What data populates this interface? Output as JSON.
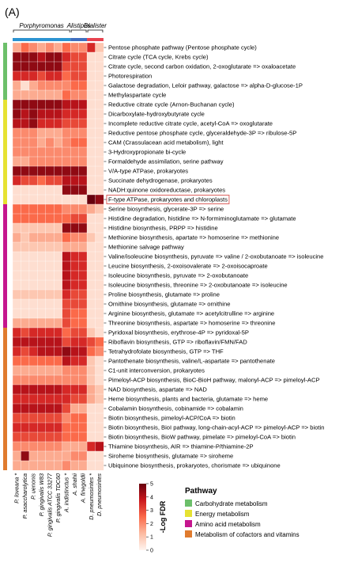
{
  "chart_data": {
    "type": "heatmap",
    "panel_label": "(A)",
    "genus_groups": [
      {
        "name": "Porphyromonas",
        "start": 0,
        "end": 6,
        "color": "#2b93d1"
      },
      {
        "name": "Alistipes",
        "start": 7,
        "end": 8,
        "color": "#3f6fbf"
      },
      {
        "name": "Dialister",
        "start": 9,
        "end": 10,
        "color": "#e8424f"
      }
    ],
    "columns": [
      "P. loveana *",
      "P. asaccharolytica",
      "P. uenonis",
      "P. gingivalis W83",
      "P. gingivalis ATCC 33277",
      "P. gingivalis TDC60",
      "A. indistinctus *",
      "A. shahii",
      "A. finegoldii",
      "D. pneumosintes *",
      "D. pneumosintes"
    ],
    "rows": [
      "Pentose phosphate pathway (Pentose phosphate cycle)",
      "Citrate cycle (TCA cycle, Krebs cycle)",
      "Citrate cycle, second carbon oxidation, 2-oxoglutarate => oxaloacetate",
      "Photorespiration",
      "Galactose degradation, Leloir pathway, galactose => alpha-D-glucose-1P",
      "Methylaspartate cycle",
      "Reductive citrate cycle (Arnon-Buchanan cycle)",
      "Dicarboxylate-hydroxybutyrate cycle",
      "Incomplete reductive citrate cycle, acetyl-CoA => oxoglutarate",
      "Reductive pentose phosphate cycle, glyceraldehyde-3P => ribulose-5P",
      "CAM (Crassulacean acid metabolism), light",
      "3-Hydroxypropionate bi-cycle",
      "Formaldehyde assimilation, serine pathway",
      "V/A-type ATPase, prokaryotes",
      "Succinate dehydrogenase, prokaryotes",
      "NADH:quinone oxidoreductase, prokaryotes",
      "F-type ATPase, prokaryotes and chloroplasts",
      "Serine biosynthesis, glycerate-3P => serine",
      "Histidine degradation, histidine => N-formiminoglutamate => glutamate",
      "Histidine biosynthesis, PRPP => histidine",
      "Methionine biosynthesis, apartate => homoserine => methionine",
      "Methionine salvage pathway",
      "Valine/isoleucine biosynthesis, pyruvate => valine / 2-oxobutanoate => isoleucine",
      "Leucine biosynthesis, 2-oxoisovalerate => 2-oxoisocaproate",
      "Isoleucine biosynthesis, pyruvate => 2-oxobutanoate",
      "Isoleucine biosynthesis, threonine => 2-oxobutanoate => isoleucine",
      "Proline biosynthesis, glutamate => proline",
      "Ornithine biosynthesis, glutamate => ornithine",
      "Arginine biosynthesis, glutamate => acetylcitrulline => arginine",
      "Threonine biosynthesis, aspartate => homoserine => threonine",
      "Pyridoxal biosynthesis, erythrose-4P => pyridoxal-5P",
      "Riboflavin biosynthesis, GTP => riboflavin/FMN/FAD",
      "Tetrahydrofolate biosynthesis, GTP => THF",
      "Pantothenate biosynthesis, valine/L-aspartate => pantothenate",
      "C1-unit interconversion, prokaryotes",
      "Pimeloyl-ACP biosynthesis, BioC-BioH pathway, malonyl-ACP => pimeloyl-ACP",
      "NAD biosynthesis, aspartate => NAD",
      "Heme biosynthesis, plants and bacteria, glutamate => heme",
      "Cobalamin biosynthesis, cobinamide => cobalamin",
      "Biotin biosynthesis, pimeloyl-ACP/CoA => biotin",
      "Biotin biosynthesis, BioI pathway, long-chain-acyl-ACP => pimeloyl-ACP => biotin",
      "Biotin biosynthesis, BioW pathway, pimelate => pimeloyl-CoA => biotin",
      "Thiamine biosynthesis, AIR => thiamine-P/thiamine-2P",
      "Siroheme biosynthesis, glutamate => siroheme",
      "Ubiquinone biosynthesis, prokaryotes, chorismate => ubiquinone"
    ],
    "highlighted_row": "F-type ATPase, prokaryotes and chloroplasts",
    "row_categories": [
      {
        "name": "Carbohydrate metabolism",
        "start": 0,
        "end": 5,
        "color": "#6cbf6a"
      },
      {
        "name": "Energy metabolism",
        "start": 6,
        "end": 16,
        "color": "#e6e232"
      },
      {
        "name": "Amino acid metabolism",
        "start": 17,
        "end": 29,
        "color": "#c5168e"
      },
      {
        "name": "Metabolism of cofactors and vitamins",
        "start": 30,
        "end": 44,
        "color": "#e07b2e"
      }
    ],
    "values": [
      [
        1.5,
        2.5,
        2.0,
        1.5,
        2.0,
        1.5,
        2.5,
        2.0,
        2.0,
        3.5,
        1.0
      ],
      [
        4.5,
        4.5,
        4.5,
        4.0,
        4.5,
        4.5,
        3.5,
        3.0,
        3.0,
        0.5,
        0.5
      ],
      [
        4.5,
        4.5,
        4.5,
        4.5,
        4.5,
        4.5,
        3.0,
        3.0,
        3.0,
        0.5,
        0.5
      ],
      [
        3.5,
        3.5,
        3.5,
        3.0,
        3.5,
        3.5,
        2.5,
        3.0,
        3.0,
        0.5,
        0.5
      ],
      [
        1.5,
        0.5,
        1.5,
        2.0,
        2.0,
        2.0,
        2.0,
        2.5,
        2.5,
        0.5,
        0.5
      ],
      [
        1.5,
        1.5,
        1.5,
        1.5,
        1.5,
        1.5,
        2.5,
        2.0,
        2.0,
        0.5,
        0.5
      ],
      [
        4.5,
        4.5,
        4.5,
        4.5,
        4.5,
        4.5,
        4.0,
        4.0,
        4.0,
        0.5,
        0.5
      ],
      [
        4.5,
        4.0,
        4.5,
        4.0,
        4.0,
        4.0,
        3.5,
        3.5,
        3.5,
        0.5,
        0.5
      ],
      [
        4.0,
        4.0,
        4.5,
        3.5,
        3.5,
        3.5,
        3.0,
        3.0,
        3.0,
        0.5,
        0.5
      ],
      [
        2.0,
        2.0,
        2.0,
        1.5,
        1.5,
        1.5,
        2.0,
        2.0,
        2.0,
        0.5,
        0.5
      ],
      [
        2.0,
        2.0,
        2.0,
        1.5,
        2.0,
        1.5,
        2.0,
        2.5,
        2.5,
        0.5,
        0.5
      ],
      [
        2.0,
        2.0,
        2.0,
        2.0,
        2.0,
        2.0,
        2.0,
        2.0,
        2.0,
        0.5,
        0.5
      ],
      [
        1.5,
        1.5,
        2.0,
        2.0,
        2.0,
        2.0,
        2.0,
        2.0,
        2.0,
        0.5,
        0.5
      ],
      [
        4.5,
        4.5,
        4.5,
        4.5,
        4.5,
        4.5,
        4.5,
        4.5,
        4.5,
        0.5,
        0.5
      ],
      [
        3.5,
        3.0,
        3.0,
        2.5,
        3.0,
        3.0,
        4.0,
        4.0,
        4.0,
        0.5,
        0.5
      ],
      [
        0.5,
        0.5,
        0.5,
        0.5,
        0.5,
        0.5,
        4.5,
        4.5,
        4.5,
        0.5,
        0.5
      ],
      [
        0.5,
        0.5,
        0.5,
        0.5,
        0.5,
        0.5,
        0.5,
        0.5,
        0.5,
        5.0,
        4.5
      ],
      [
        2.5,
        2.5,
        2.5,
        2.5,
        2.5,
        2.5,
        2.0,
        2.0,
        2.0,
        1.5,
        1.0
      ],
      [
        2.5,
        2.5,
        2.5,
        2.5,
        2.5,
        2.5,
        2.5,
        3.0,
        3.0,
        0.5,
        0.5
      ],
      [
        1.0,
        1.0,
        1.0,
        1.0,
        1.0,
        1.0,
        4.5,
        4.5,
        4.5,
        0.5,
        0.5
      ],
      [
        1.5,
        1.0,
        1.5,
        1.5,
        1.5,
        1.5,
        2.5,
        2.0,
        2.0,
        1.0,
        0.5
      ],
      [
        1.0,
        1.0,
        1.0,
        1.0,
        1.0,
        1.0,
        1.5,
        1.5,
        1.5,
        0.5,
        0.5
      ],
      [
        0.5,
        0.5,
        0.5,
        0.5,
        0.5,
        0.5,
        4.0,
        3.5,
        3.5,
        0.5,
        0.5
      ],
      [
        0.5,
        0.5,
        0.5,
        0.5,
        0.5,
        0.5,
        4.0,
        3.5,
        3.5,
        0.5,
        0.5
      ],
      [
        0.5,
        0.5,
        0.5,
        0.5,
        0.5,
        0.5,
        4.0,
        3.5,
        3.5,
        0.5,
        0.5
      ],
      [
        0.5,
        0.5,
        0.5,
        0.5,
        0.5,
        0.5,
        4.0,
        3.5,
        3.5,
        0.5,
        0.5
      ],
      [
        1.0,
        1.0,
        1.0,
        1.0,
        1.0,
        1.0,
        3.5,
        3.0,
        3.0,
        0.5,
        0.5
      ],
      [
        0.5,
        0.5,
        0.5,
        0.5,
        0.5,
        0.5,
        3.0,
        3.0,
        3.0,
        0.5,
        0.5
      ],
      [
        0.5,
        0.5,
        0.5,
        0.5,
        0.5,
        0.5,
        3.0,
        2.5,
        2.5,
        0.5,
        0.5
      ],
      [
        1.5,
        1.5,
        1.5,
        1.5,
        1.5,
        1.5,
        3.0,
        2.5,
        2.5,
        0.5,
        0.5
      ],
      [
        3.5,
        3.0,
        3.5,
        3.5,
        3.5,
        3.5,
        2.5,
        3.0,
        3.0,
        1.0,
        0.5
      ],
      [
        4.0,
        4.0,
        4.0,
        4.0,
        4.0,
        4.0,
        3.0,
        3.5,
        3.5,
        3.0,
        2.5
      ],
      [
        3.5,
        3.0,
        3.5,
        4.0,
        4.0,
        4.0,
        4.5,
        4.0,
        4.0,
        2.5,
        2.0
      ],
      [
        2.5,
        2.5,
        2.5,
        2.5,
        2.5,
        2.5,
        4.0,
        3.5,
        3.5,
        1.0,
        0.5
      ],
      [
        1.5,
        1.5,
        1.5,
        1.5,
        1.5,
        1.5,
        2.0,
        2.0,
        2.0,
        1.0,
        0.5
      ],
      [
        2.0,
        2.0,
        2.0,
        2.0,
        2.0,
        2.0,
        2.0,
        2.0,
        2.0,
        1.0,
        0.5
      ],
      [
        4.0,
        4.0,
        4.0,
        4.0,
        4.0,
        4.0,
        3.5,
        3.5,
        3.5,
        1.5,
        1.0
      ],
      [
        3.5,
        3.5,
        3.5,
        3.5,
        3.5,
        3.5,
        3.5,
        3.0,
        3.0,
        1.5,
        1.0
      ],
      [
        4.0,
        4.0,
        4.0,
        4.0,
        4.0,
        4.0,
        3.0,
        1.5,
        1.5,
        0.5,
        0.5
      ],
      [
        3.0,
        3.0,
        3.0,
        3.0,
        3.0,
        3.0,
        2.0,
        2.5,
        2.5,
        0.5,
        0.5
      ],
      [
        3.5,
        3.5,
        3.5,
        3.5,
        3.5,
        3.5,
        2.5,
        2.5,
        2.5,
        0.5,
        0.5
      ],
      [
        3.0,
        3.0,
        3.0,
        3.0,
        3.0,
        3.0,
        2.5,
        2.5,
        2.5,
        0.5,
        0.5
      ],
      [
        2.0,
        2.0,
        2.0,
        2.0,
        2.0,
        2.0,
        1.5,
        1.5,
        1.5,
        3.5,
        4.0
      ],
      [
        1.5,
        4.5,
        1.5,
        1.5,
        1.5,
        1.5,
        1.5,
        2.0,
        2.0,
        0.5,
        0.5
      ],
      [
        1.5,
        1.5,
        1.5,
        1.5,
        1.5,
        1.5,
        2.0,
        1.5,
        1.5,
        0.5,
        0.5
      ]
    ],
    "colorbar": {
      "title": "-Log FDR",
      "min": 0,
      "max": 5,
      "ticks": [
        0,
        1,
        2,
        3,
        4,
        5
      ],
      "colors": [
        "#fff5f0",
        "#fcbba1",
        "#fb6a4a",
        "#cb181d",
        "#67000d"
      ]
    },
    "legend": {
      "title": "Pathway",
      "placement": "bottom-right"
    }
  }
}
